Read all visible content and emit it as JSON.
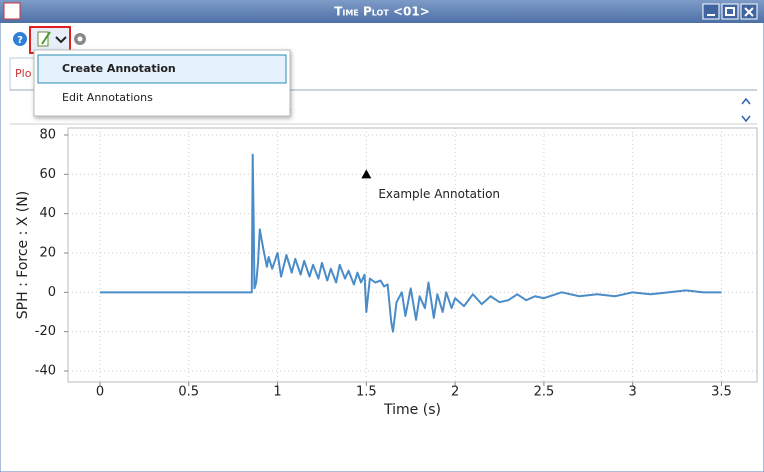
{
  "window": {
    "title": "Time Plot <01>"
  },
  "menu": {
    "items": [
      "Create Annotation",
      "Edit Annotations"
    ]
  },
  "tab": "Plo",
  "header_fragment": ")",
  "chart_data": {
    "type": "line",
    "xlabel": "Time (s)",
    "ylabel": "SPH : Force : X (N)",
    "color": "#4a8cc8",
    "x": [
      0,
      0.855,
      0.86,
      0.865,
      0.87,
      0.88,
      0.89,
      0.9,
      0.92,
      0.94,
      0.95,
      0.97,
      1.0,
      1.02,
      1.05,
      1.08,
      1.1,
      1.13,
      1.15,
      1.18,
      1.2,
      1.23,
      1.25,
      1.28,
      1.3,
      1.33,
      1.35,
      1.38,
      1.4,
      1.43,
      1.45,
      1.47,
      1.49,
      1.5,
      1.52,
      1.55,
      1.58,
      1.6,
      1.62,
      1.64,
      1.65,
      1.67,
      1.7,
      1.72,
      1.75,
      1.78,
      1.8,
      1.83,
      1.85,
      1.88,
      1.9,
      1.93,
      1.95,
      1.98,
      2.0,
      2.05,
      2.1,
      2.15,
      2.2,
      2.25,
      2.3,
      2.35,
      2.4,
      2.45,
      2.5,
      2.6,
      2.7,
      2.8,
      2.9,
      3.0,
      3.1,
      3.2,
      3.3,
      3.4,
      3.5
    ],
    "values": [
      0,
      0,
      70,
      40,
      2,
      5,
      15,
      32,
      22,
      13,
      18,
      12,
      20,
      8,
      19,
      10,
      17,
      9,
      16,
      8,
      14,
      7,
      15,
      6,
      12,
      5,
      14,
      7,
      11,
      4,
      10,
      5,
      9,
      -10,
      7,
      5,
      6,
      3,
      4,
      -15,
      -20,
      -5,
      0,
      -12,
      2,
      -14,
      -2,
      -8,
      5,
      -13,
      -1,
      -10,
      0,
      -8,
      -3,
      -7,
      -1,
      -6,
      -2,
      -5,
      -4,
      -1,
      -4,
      -2,
      -3,
      0,
      -2,
      -1,
      -2,
      0,
      -1,
      0,
      1,
      0,
      0
    ],
    "xlim": [
      -0.18,
      3.7
    ],
    "ylim": [
      -40,
      80
    ],
    "xticks": [
      0,
      0.5,
      1,
      1.5,
      2,
      2.5,
      3,
      3.5
    ],
    "yticks": [
      -40,
      -20,
      0,
      20,
      40,
      60,
      80
    ],
    "grid": true,
    "annotations": [
      {
        "text": "Example Annotation",
        "x": 1.5,
        "y": 60
      }
    ]
  }
}
